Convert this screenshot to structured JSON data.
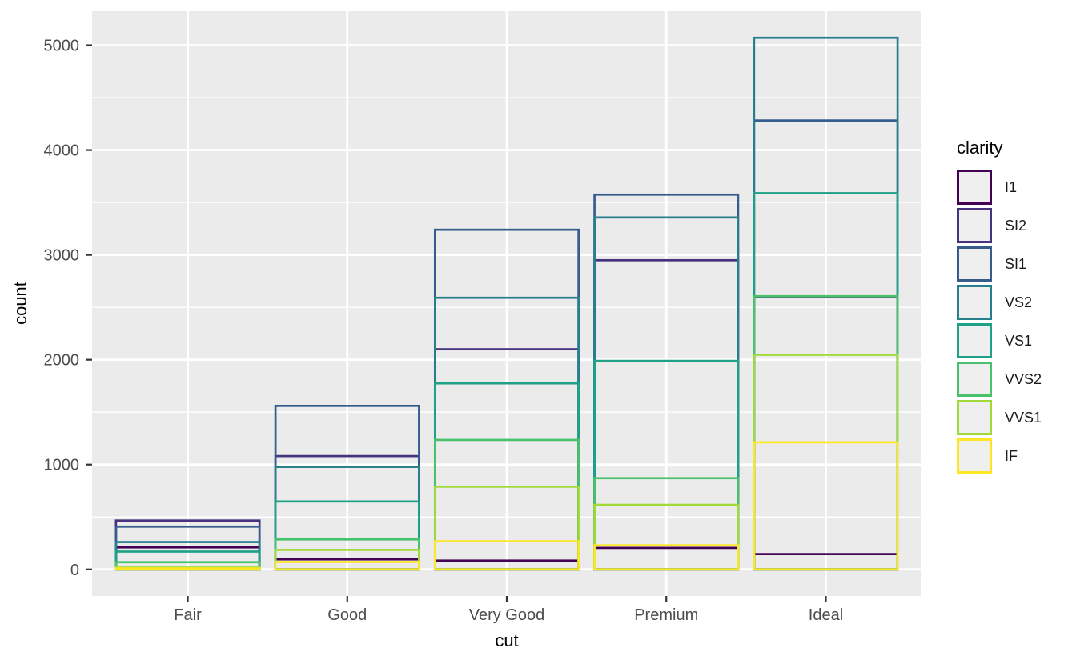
{
  "chart_data": {
    "type": "bar",
    "bar_mode": "identity-overlap-outline",
    "xlabel": "cut",
    "ylabel": "count",
    "legend_title": "clarity",
    "legend_position": "right",
    "categories": [
      "Fair",
      "Good",
      "Very Good",
      "Premium",
      "Ideal"
    ],
    "series": [
      {
        "name": "I1",
        "color": "#440154",
        "values": [
          210,
          96,
          84,
          205,
          146
        ]
      },
      {
        "name": "SI2",
        "color": "#46327E",
        "values": [
          466,
          1081,
          2100,
          2949,
          2598
        ]
      },
      {
        "name": "SI1",
        "color": "#365C8D",
        "values": [
          408,
          1560,
          3240,
          3575,
          4282
        ]
      },
      {
        "name": "VS2",
        "color": "#277F8E",
        "values": [
          261,
          978,
          2591,
          3357,
          5071
        ]
      },
      {
        "name": "VS1",
        "color": "#1FA187",
        "values": [
          170,
          648,
          1775,
          1989,
          3589
        ]
      },
      {
        "name": "VVS2",
        "color": "#4AC16D",
        "values": [
          69,
          286,
          1235,
          870,
          2606
        ]
      },
      {
        "name": "VVS1",
        "color": "#A0DA39",
        "values": [
          17,
          186,
          789,
          616,
          2047
        ]
      },
      {
        "name": "IF",
        "color": "#FDE725",
        "values": [
          9,
          71,
          268,
          230,
          1212
        ]
      }
    ],
    "y_ticks": [
      0,
      1000,
      2000,
      3000,
      4000,
      5000
    ],
    "y_minor_ticks": [
      500,
      1500,
      2500,
      3500,
      4500
    ],
    "ylim": [
      -253.6,
      5324.6
    ],
    "grid": true,
    "colors": {
      "panel_bg": "#EBEBEB",
      "grid_major": "#FFFFFF",
      "grid_minor": "#FFFFFF",
      "tick_mark": "#333333",
      "tick_label": "#4D4D4D",
      "axis_title": "#000000",
      "legend_key_bg": "#EFEFEF",
      "figure_bg": "#FFFFFF"
    }
  }
}
